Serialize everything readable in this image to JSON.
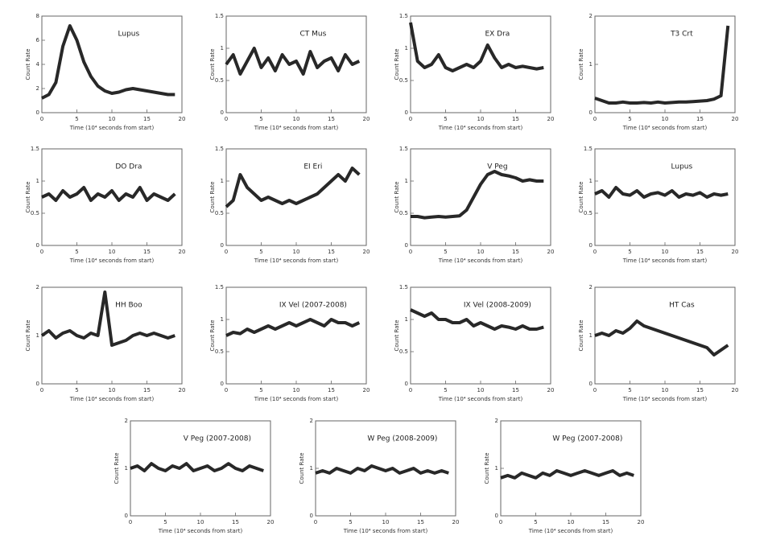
{
  "chart_data": [
    {
      "type": "line",
      "title": "Lupus",
      "ylabel": "Count Rate",
      "xlabel": "Time (10⁴ seconds from start)",
      "color": "#111111",
      "x": [
        0,
        1,
        2,
        3,
        4,
        5,
        6,
        7,
        8,
        9,
        10,
        11,
        12,
        13,
        14,
        15,
        16,
        17,
        18,
        19
      ],
      "values": [
        1.2,
        1.5,
        2.5,
        5.5,
        7.2,
        6.0,
        4.2,
        3.0,
        2.2,
        1.8,
        1.6,
        1.7,
        1.9,
        2.0,
        1.9,
        1.8,
        1.7,
        1.6,
        1.5,
        1.5
      ],
      "xlim": [
        0,
        20
      ],
      "xticks": [
        0,
        5,
        10,
        15,
        20
      ],
      "ylim": [
        0,
        8
      ],
      "yticks": [
        0,
        2,
        4,
        6,
        8
      ]
    },
    {
      "type": "line",
      "title": "CT Mus",
      "ylabel": "Count Rate",
      "xlabel": "Time (10⁴ seconds from start)",
      "color": "#111111",
      "x": [
        0,
        1,
        2,
        3,
        4,
        5,
        6,
        7,
        8,
        9,
        10,
        11,
        12,
        13,
        14,
        15,
        16,
        17,
        18,
        19
      ],
      "values": [
        0.75,
        0.9,
        0.6,
        0.8,
        1.0,
        0.7,
        0.85,
        0.65,
        0.9,
        0.75,
        0.8,
        0.6,
        0.95,
        0.7,
        0.8,
        0.85,
        0.65,
        0.9,
        0.75,
        0.8
      ],
      "xlim": [
        0,
        20
      ],
      "xticks": [
        0,
        5,
        10,
        15,
        20
      ],
      "ylim": [
        0,
        1.5
      ],
      "yticks": [
        0,
        0.5,
        1,
        1.5
      ]
    },
    {
      "type": "line",
      "title": "EX Dra",
      "ylabel": "Count Rate",
      "xlabel": "Time (10⁴ seconds from start)",
      "color": "#111111",
      "x": [
        0,
        1,
        2,
        3,
        4,
        5,
        6,
        7,
        8,
        9,
        10,
        11,
        12,
        13,
        14,
        15,
        16,
        17,
        18,
        19
      ],
      "values": [
        1.4,
        0.8,
        0.7,
        0.75,
        0.9,
        0.7,
        0.65,
        0.7,
        0.75,
        0.7,
        0.8,
        1.05,
        0.85,
        0.7,
        0.75,
        0.7,
        0.72,
        0.7,
        0.68,
        0.7
      ],
      "xlim": [
        0,
        20
      ],
      "xticks": [
        0,
        5,
        10,
        15,
        20
      ],
      "ylim": [
        0,
        1.5
      ],
      "yticks": [
        0,
        0.5,
        1,
        1.5
      ]
    },
    {
      "type": "line",
      "title": "T3 Crt",
      "ylabel": "Count Rate",
      "xlabel": "Time (10⁴ seconds from start)",
      "color": "#111111",
      "x": [
        0,
        1,
        2,
        3,
        4,
        5,
        6,
        7,
        8,
        9,
        10,
        11,
        12,
        13,
        14,
        15,
        16,
        17,
        18,
        19
      ],
      "values": [
        0.3,
        0.25,
        0.2,
        0.2,
        0.22,
        0.2,
        0.2,
        0.21,
        0.2,
        0.22,
        0.2,
        0.21,
        0.22,
        0.22,
        0.23,
        0.24,
        0.25,
        0.28,
        0.35,
        1.8
      ],
      "xlim": [
        0,
        20
      ],
      "xticks": [
        0,
        5,
        10,
        15,
        20
      ],
      "ylim": [
        0,
        2
      ],
      "yticks": [
        0,
        1,
        2
      ]
    },
    {
      "type": "line",
      "title": "DO Dra",
      "ylabel": "Count Rate",
      "xlabel": "Time (10⁴ seconds from start)",
      "color": "#111111",
      "x": [
        0,
        1,
        2,
        3,
        4,
        5,
        6,
        7,
        8,
        9,
        10,
        11,
        12,
        13,
        14,
        15,
        16,
        17,
        18,
        19
      ],
      "values": [
        0.75,
        0.8,
        0.7,
        0.85,
        0.75,
        0.8,
        0.9,
        0.7,
        0.8,
        0.75,
        0.85,
        0.7,
        0.8,
        0.75,
        0.9,
        0.7,
        0.8,
        0.75,
        0.7,
        0.8
      ],
      "xlim": [
        0,
        20
      ],
      "xticks": [
        0,
        5,
        10,
        15,
        20
      ],
      "ylim": [
        0,
        1.5
      ],
      "yticks": [
        0,
        0.5,
        1,
        1.5
      ]
    },
    {
      "type": "line",
      "title": "EI Eri",
      "ylabel": "Count Rate",
      "xlabel": "Time (10⁴ seconds from start)",
      "color": "#111111",
      "x": [
        0,
        1,
        2,
        3,
        4,
        5,
        6,
        7,
        8,
        9,
        10,
        11,
        12,
        13,
        14,
        15,
        16,
        17,
        18,
        19
      ],
      "values": [
        0.6,
        0.7,
        1.1,
        0.9,
        0.8,
        0.7,
        0.75,
        0.7,
        0.65,
        0.7,
        0.65,
        0.7,
        0.75,
        0.8,
        0.9,
        1.0,
        1.1,
        1.0,
        1.2,
        1.1
      ],
      "xlim": [
        0,
        20
      ],
      "xticks": [
        0,
        5,
        10,
        15,
        20
      ],
      "ylim": [
        0,
        1.5
      ],
      "yticks": [
        0,
        0.5,
        1,
        1.5
      ]
    },
    {
      "type": "line",
      "title": "V Peg",
      "ylabel": "Count Rate",
      "xlabel": "Time (10⁴ seconds from start)",
      "color": "#111111",
      "x": [
        0,
        1,
        2,
        3,
        4,
        5,
        6,
        7,
        8,
        9,
        10,
        11,
        12,
        13,
        14,
        15,
        16,
        17,
        18,
        19
      ],
      "values": [
        0.45,
        0.45,
        0.43,
        0.44,
        0.45,
        0.44,
        0.45,
        0.46,
        0.55,
        0.75,
        0.95,
        1.1,
        1.15,
        1.1,
        1.08,
        1.05,
        1.0,
        1.02,
        1.0,
        1.0
      ],
      "xlim": [
        0,
        20
      ],
      "xticks": [
        0,
        5,
        10,
        15,
        20
      ],
      "ylim": [
        0,
        1.5
      ],
      "yticks": [
        0,
        0.5,
        1,
        1.5
      ]
    },
    {
      "type": "line",
      "title": "Lupus",
      "ylabel": "Count Rate",
      "xlabel": "Time (10⁴ seconds from start)",
      "color": "#111111",
      "x": [
        0,
        1,
        2,
        3,
        4,
        5,
        6,
        7,
        8,
        9,
        10,
        11,
        12,
        13,
        14,
        15,
        16,
        17,
        18,
        19
      ],
      "values": [
        0.8,
        0.85,
        0.75,
        0.9,
        0.8,
        0.78,
        0.85,
        0.75,
        0.8,
        0.82,
        0.78,
        0.85,
        0.75,
        0.8,
        0.78,
        0.82,
        0.75,
        0.8,
        0.78,
        0.8
      ],
      "xlim": [
        0,
        20
      ],
      "xticks": [
        0,
        5,
        10,
        15,
        20
      ],
      "ylim": [
        0,
        1.5
      ],
      "yticks": [
        0,
        0.5,
        1,
        1.5
      ]
    },
    {
      "type": "line",
      "title": "HH Boo",
      "ylabel": "Count Rate",
      "xlabel": "Time (10⁴ seconds from start)",
      "color": "#111111",
      "x": [
        0,
        1,
        2,
        3,
        4,
        5,
        6,
        7,
        8,
        9,
        10,
        11,
        12,
        13,
        14,
        15,
        16,
        17,
        18,
        19
      ],
      "values": [
        1.0,
        1.1,
        0.95,
        1.05,
        1.1,
        1.0,
        0.95,
        1.05,
        1.0,
        1.9,
        0.8,
        0.85,
        0.9,
        1.0,
        1.05,
        1.0,
        1.05,
        1.0,
        0.95,
        1.0
      ],
      "xlim": [
        0,
        20
      ],
      "xticks": [
        0,
        5,
        10,
        15,
        20
      ],
      "ylim": [
        0,
        2
      ],
      "yticks": [
        0,
        1,
        2
      ]
    },
    {
      "type": "line",
      "title": "IX Vel (2007-2008)",
      "ylabel": "Count Rate",
      "xlabel": "Time (10⁴ seconds from start)",
      "color": "#111111",
      "x": [
        0,
        1,
        2,
        3,
        4,
        5,
        6,
        7,
        8,
        9,
        10,
        11,
        12,
        13,
        14,
        15,
        16,
        17,
        18,
        19
      ],
      "values": [
        0.75,
        0.8,
        0.78,
        0.85,
        0.8,
        0.85,
        0.9,
        0.85,
        0.9,
        0.95,
        0.9,
        0.95,
        1.0,
        0.95,
        0.9,
        1.0,
        0.95,
        0.95,
        0.9,
        0.95
      ],
      "xlim": [
        0,
        20
      ],
      "xticks": [
        0,
        5,
        10,
        15,
        20
      ],
      "ylim": [
        0,
        1.5
      ],
      "yticks": [
        0,
        0.5,
        1,
        1.5
      ]
    },
    {
      "type": "line",
      "title": "IX Vel (2008-2009)",
      "ylabel": "Count Rate",
      "xlabel": "Time (10⁴ seconds from start)",
      "color": "#111111",
      "x": [
        0,
        1,
        2,
        3,
        4,
        5,
        6,
        7,
        8,
        9,
        10,
        11,
        12,
        13,
        14,
        15,
        16,
        17,
        18,
        19
      ],
      "values": [
        1.15,
        1.1,
        1.05,
        1.1,
        1.0,
        1.0,
        0.95,
        0.95,
        1.0,
        0.9,
        0.95,
        0.9,
        0.85,
        0.9,
        0.88,
        0.85,
        0.9,
        0.85,
        0.85,
        0.88
      ],
      "xlim": [
        0,
        20
      ],
      "xticks": [
        0,
        5,
        10,
        15,
        20
      ],
      "ylim": [
        0,
        1.5
      ],
      "yticks": [
        0,
        0.5,
        1,
        1.5
      ]
    },
    {
      "type": "line",
      "title": "HT Cas",
      "ylabel": "Count Rate",
      "xlabel": "Time (10⁴ seconds from start)",
      "color": "#111111",
      "x": [
        0,
        1,
        2,
        3,
        4,
        5,
        6,
        7,
        8,
        9,
        10,
        11,
        12,
        13,
        14,
        15,
        16,
        17,
        18,
        19
      ],
      "values": [
        1.0,
        1.05,
        1.0,
        1.1,
        1.05,
        1.15,
        1.3,
        1.2,
        1.15,
        1.1,
        1.05,
        1.0,
        0.95,
        0.9,
        0.85,
        0.8,
        0.75,
        0.6,
        0.7,
        0.8
      ],
      "xlim": [
        0,
        20
      ],
      "xticks": [
        0,
        5,
        10,
        15,
        20
      ],
      "ylim": [
        0,
        2
      ],
      "yticks": [
        0,
        1,
        2
      ]
    },
    {
      "type": "line",
      "title": "V Peg (2007-2008)",
      "ylabel": "Count Rate",
      "xlabel": "Time (10⁴ seconds from start)",
      "color": "#111111",
      "x": [
        0,
        1,
        2,
        3,
        4,
        5,
        6,
        7,
        8,
        9,
        10,
        11,
        12,
        13,
        14,
        15,
        16,
        17,
        18,
        19
      ],
      "values": [
        1.0,
        1.05,
        0.95,
        1.1,
        1.0,
        0.95,
        1.05,
        1.0,
        1.1,
        0.95,
        1.0,
        1.05,
        0.95,
        1.0,
        1.1,
        1.0,
        0.95,
        1.05,
        1.0,
        0.95
      ],
      "xlim": [
        0,
        20
      ],
      "xticks": [
        0,
        5,
        10,
        15,
        20
      ],
      "ylim": [
        0,
        2
      ],
      "yticks": [
        0,
        1,
        2
      ]
    },
    {
      "type": "line",
      "title": "W Peg (2008-2009)",
      "ylabel": "Count Rate",
      "xlabel": "Time (10⁴ seconds from start)",
      "color": "#111111",
      "x": [
        0,
        1,
        2,
        3,
        4,
        5,
        6,
        7,
        8,
        9,
        10,
        11,
        12,
        13,
        14,
        15,
        16,
        17,
        18,
        19
      ],
      "values": [
        0.9,
        0.95,
        0.9,
        1.0,
        0.95,
        0.9,
        1.0,
        0.95,
        1.05,
        1.0,
        0.95,
        1.0,
        0.9,
        0.95,
        1.0,
        0.9,
        0.95,
        0.9,
        0.95,
        0.9
      ],
      "xlim": [
        0,
        20
      ],
      "xticks": [
        0,
        5,
        10,
        15,
        20
      ],
      "ylim": [
        0,
        2
      ],
      "yticks": [
        0,
        1,
        2
      ]
    },
    {
      "type": "line",
      "title": "W Peg (2007-2008)",
      "ylabel": "Count Rate",
      "xlabel": "Time (10⁴ seconds from start)",
      "color": "#111111",
      "x": [
        0,
        1,
        2,
        3,
        4,
        5,
        6,
        7,
        8,
        9,
        10,
        11,
        12,
        13,
        14,
        15,
        16,
        17,
        18,
        19
      ],
      "values": [
        0.8,
        0.85,
        0.8,
        0.9,
        0.85,
        0.8,
        0.9,
        0.85,
        0.95,
        0.9,
        0.85,
        0.9,
        0.95,
        0.9,
        0.85,
        0.9,
        0.95,
        0.85,
        0.9,
        0.85
      ],
      "xlim": [
        0,
        20
      ],
      "xticks": [
        0,
        5,
        10,
        15,
        20
      ],
      "ylim": [
        0,
        2
      ],
      "yticks": [
        0,
        1,
        2
      ]
    }
  ]
}
